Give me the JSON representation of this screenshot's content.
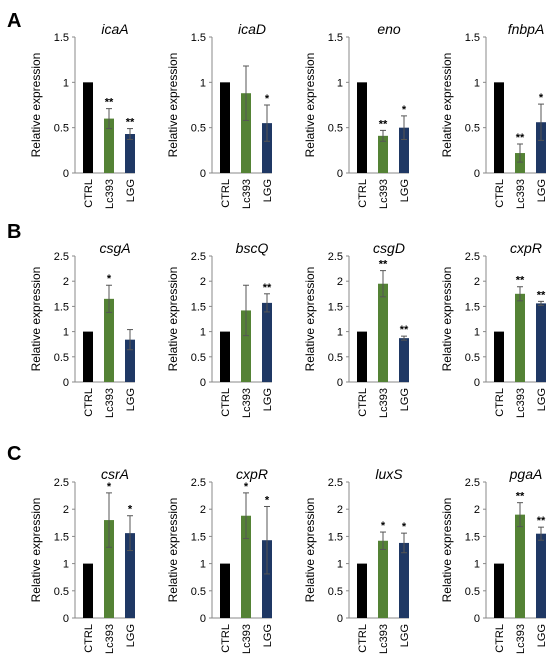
{
  "colors": {
    "CTRL": "#000000",
    "Lc393": "#548235",
    "LGG": "#1f3864"
  },
  "chart_data": [
    {
      "panel": "A",
      "type": "bar",
      "title": "icaA",
      "ylabel": "Relative expression",
      "ylim": [
        0,
        1.5
      ],
      "yticks": [
        "0",
        "0.5",
        "1",
        "1.5"
      ],
      "categories": [
        "CTRL",
        "Lc393",
        "LGG"
      ],
      "values": [
        1,
        0.6,
        0.43
      ],
      "errors": [
        0,
        0.11,
        0.06
      ],
      "significance": [
        "",
        "**",
        "**"
      ]
    },
    {
      "panel": "",
      "type": "bar",
      "title": "icaD",
      "ylabel": "Relative expression",
      "ylim": [
        0,
        1.5
      ],
      "yticks": [
        "0",
        "0.5",
        "1",
        "1.5"
      ],
      "categories": [
        "CTRL",
        "Lc393",
        "LGG"
      ],
      "values": [
        1,
        0.88,
        0.55
      ],
      "errors": [
        0,
        0.3,
        0.2
      ],
      "significance": [
        "",
        "",
        "*"
      ]
    },
    {
      "panel": "",
      "type": "bar",
      "title": "eno",
      "ylabel": "Relative expression",
      "ylim": [
        0,
        1.5
      ],
      "yticks": [
        "0",
        "0.5",
        "1",
        "1.5"
      ],
      "categories": [
        "CTRL",
        "Lc393",
        "LGG"
      ],
      "values": [
        1,
        0.41,
        0.5
      ],
      "errors": [
        0,
        0.06,
        0.13
      ],
      "significance": [
        "",
        "**",
        "*"
      ]
    },
    {
      "panel": "",
      "type": "bar",
      "title": "fnbpA",
      "ylabel": "Relative expression",
      "ylim": [
        0,
        1.5
      ],
      "yticks": [
        "0",
        "0.5",
        "1",
        "1.5"
      ],
      "categories": [
        "CTRL",
        "Lc393",
        "LGG"
      ],
      "values": [
        1,
        0.22,
        0.56
      ],
      "errors": [
        0,
        0.1,
        0.2
      ],
      "significance": [
        "",
        "**",
        "*"
      ]
    },
    {
      "panel": "B",
      "type": "bar",
      "title": "csgA",
      "ylabel": "Relative expression",
      "ylim": [
        0,
        2.5
      ],
      "yticks": [
        "0",
        "0.5",
        "1",
        "1.5",
        "2",
        "2.5"
      ],
      "categories": [
        "CTRL",
        "Lc393",
        "LGG"
      ],
      "values": [
        1,
        1.65,
        0.84
      ],
      "errors": [
        0,
        0.27,
        0.2
      ],
      "significance": [
        "",
        "*",
        ""
      ]
    },
    {
      "panel": "",
      "type": "bar",
      "title": "bscQ",
      "ylabel": "Relative expression",
      "ylim": [
        0,
        2.5
      ],
      "yticks": [
        "0",
        "0.5",
        "1",
        "1.5",
        "2",
        "2.5"
      ],
      "categories": [
        "CTRL",
        "Lc393",
        "LGG"
      ],
      "values": [
        1,
        1.42,
        1.57
      ],
      "errors": [
        0,
        0.5,
        0.18
      ],
      "significance": [
        "",
        "",
        "**"
      ]
    },
    {
      "panel": "",
      "type": "bar",
      "title": "csgD",
      "ylabel": "Relative expression",
      "ylim": [
        0,
        2.5
      ],
      "yticks": [
        "0",
        "0.5",
        "1",
        "1.5",
        "2",
        "2.5"
      ],
      "categories": [
        "CTRL",
        "Lc393",
        "LGG"
      ],
      "values": [
        1,
        1.95,
        0.87
      ],
      "errors": [
        0,
        0.26,
        0.04
      ],
      "significance": [
        "",
        "**",
        "**"
      ]
    },
    {
      "panel": "",
      "type": "bar",
      "title": "cxpR",
      "ylabel": "Relative expression",
      "ylim": [
        0,
        2.5
      ],
      "yticks": [
        "0",
        "0.5",
        "1",
        "1.5",
        "2",
        "2.5"
      ],
      "categories": [
        "CTRL",
        "Lc393",
        "LGG"
      ],
      "values": [
        1,
        1.75,
        1.56
      ],
      "errors": [
        0,
        0.14,
        0.04
      ],
      "significance": [
        "",
        "**",
        "**"
      ]
    },
    {
      "panel": "C",
      "type": "bar",
      "title": "csrA",
      "ylabel": "Relative expression",
      "ylim": [
        0,
        2.5
      ],
      "yticks": [
        "0",
        "0.5",
        "1",
        "1.5",
        "2",
        "2.5"
      ],
      "categories": [
        "CTRL",
        "Lc393",
        "LGG"
      ],
      "values": [
        1,
        1.8,
        1.56
      ],
      "errors": [
        0,
        0.5,
        0.32
      ],
      "significance": [
        "",
        "*",
        "*"
      ]
    },
    {
      "panel": "",
      "type": "bar",
      "title": "cxpR",
      "ylabel": "Relative expression",
      "ylim": [
        0,
        2.5
      ],
      "yticks": [
        "0",
        "0.5",
        "1",
        "1.5",
        "2",
        "2.5"
      ],
      "categories": [
        "CTRL",
        "Lc393",
        "LGG"
      ],
      "values": [
        1,
        1.88,
        1.43
      ],
      "errors": [
        0,
        0.42,
        0.62
      ],
      "significance": [
        "",
        "*",
        "*"
      ]
    },
    {
      "panel": "",
      "type": "bar",
      "title": "luxS",
      "ylabel": "Relative expression",
      "ylim": [
        0,
        2.5
      ],
      "yticks": [
        "0",
        "0.5",
        "1",
        "1.5",
        "2",
        "2.5"
      ],
      "categories": [
        "CTRL",
        "Lc393",
        "LGG"
      ],
      "values": [
        1,
        1.42,
        1.38
      ],
      "errors": [
        0,
        0.16,
        0.18
      ],
      "significance": [
        "",
        "*",
        "*"
      ]
    },
    {
      "panel": "",
      "type": "bar",
      "title": "pgaA",
      "ylabel": "Relative expression",
      "ylim": [
        0,
        2.5
      ],
      "yticks": [
        "0",
        "0.5",
        "1",
        "1.5",
        "2",
        "2.5"
      ],
      "categories": [
        "CTRL",
        "Lc393",
        "LGG"
      ],
      "values": [
        1,
        1.9,
        1.55
      ],
      "errors": [
        0,
        0.22,
        0.12
      ],
      "significance": [
        "",
        "**",
        "**"
      ]
    }
  ]
}
